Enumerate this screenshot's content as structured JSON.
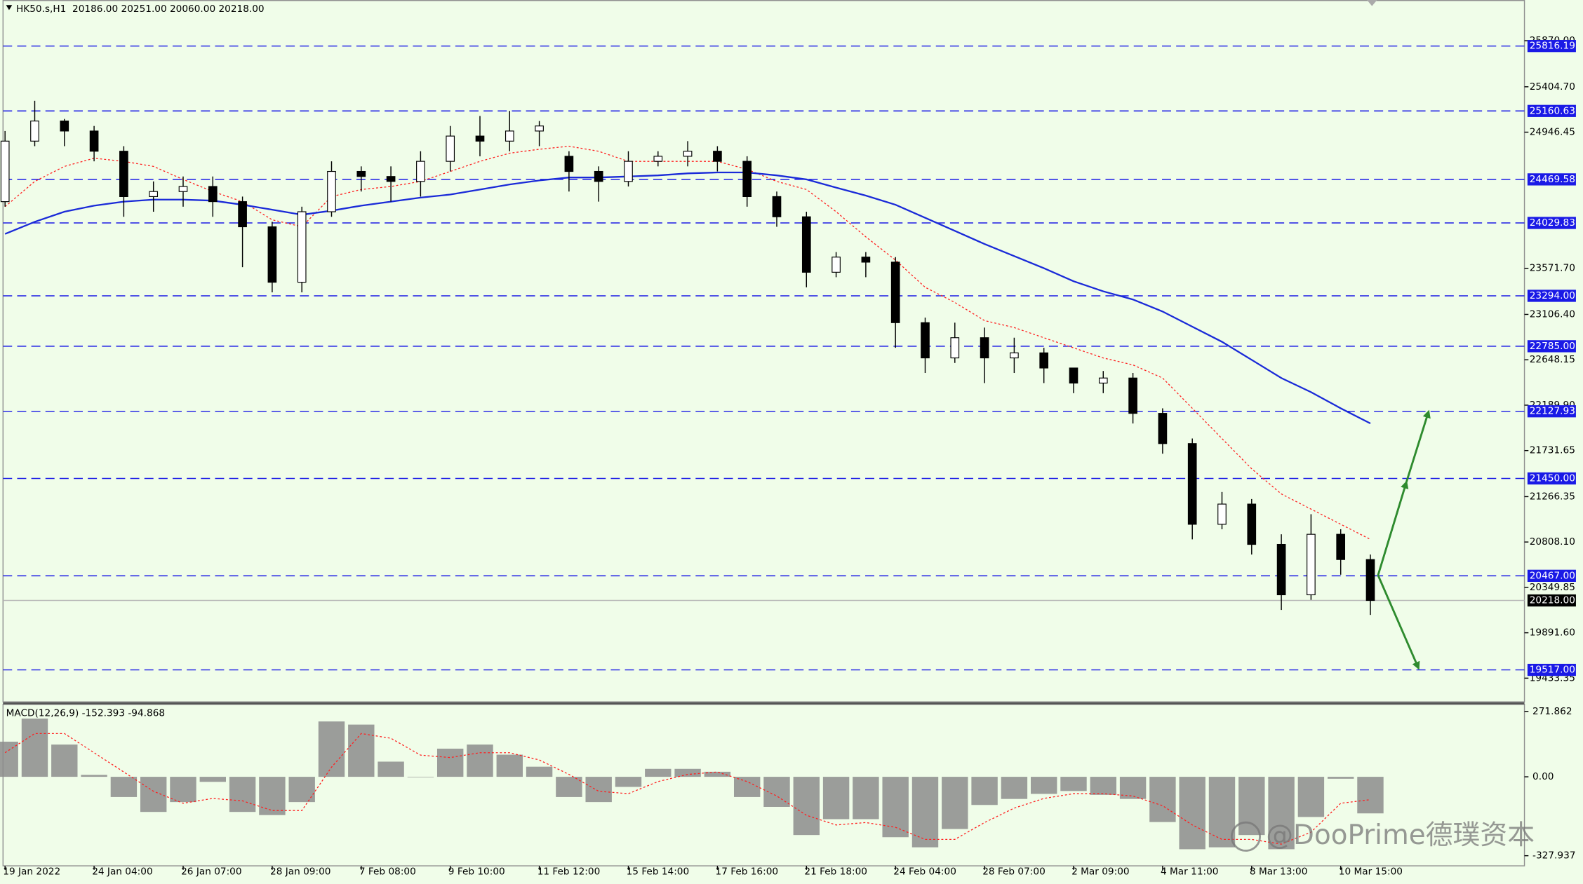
{
  "chart_data": [
    {
      "type": "candlestick",
      "title": "HK50.s,H1  20186.00 20251.00 20060.00 20218.00",
      "categories": [
        "19 Jan 2022",
        null,
        null,
        "24 Jan 04:00",
        null,
        null,
        "26 Jan 07:00",
        null,
        null,
        "28 Jan 09:00",
        null,
        null,
        "7 Feb 08:00",
        null,
        null,
        "9 Feb 10:00",
        null,
        null,
        "11 Feb 12:00",
        null,
        null,
        "15 Feb 14:00",
        null,
        null,
        "17 Feb 16:00",
        null,
        null,
        "21 Feb 18:00",
        null,
        null,
        "24 Feb 04:00",
        null,
        null,
        "28 Feb 07:00",
        null,
        null,
        "2 Mar 09:00",
        null,
        null,
        "4 Mar 11:00",
        null,
        null,
        "8 Mar 13:00",
        null,
        null,
        "10 Mar 15:00",
        null
      ],
      "open": [
        24245,
        24856,
        25059,
        24958,
        24754,
        24296,
        24347,
        24398,
        24245,
        23991,
        23431,
        24143,
        24550,
        24499,
        24449,
        24652,
        24907,
        24856,
        24958,
        24703,
        24550,
        24449,
        24652,
        24703,
        24754,
        24652,
        24296,
        24092,
        23532,
        23685,
        23634,
        23023,
        22667,
        22871,
        22667,
        22718,
        22565,
        22413,
        22464,
        22107,
        21802,
        20987,
        21191,
        20784,
        20275,
        20886,
        20631
      ],
      "high": [
        24958,
        25263,
        25080,
        25009,
        24805,
        24449,
        24499,
        24499,
        24296,
        24041,
        24194,
        24652,
        24601,
        24601,
        24754,
        25009,
        25110,
        25161,
        25059,
        24754,
        24601,
        24754,
        24754,
        24856,
        24805,
        24703,
        24347,
        24143,
        23736,
        23736,
        23685,
        23074,
        23023,
        22973,
        22871,
        22769,
        22565,
        22535,
        22515,
        22158,
        21853,
        21313,
        21242,
        20886,
        21089,
        20937,
        20682
      ],
      "low": [
        24194,
        24805,
        24805,
        24652,
        24092,
        24143,
        24194,
        24092,
        23583,
        23329,
        23329,
        24092,
        24347,
        24245,
        24296,
        24550,
        24703,
        24754,
        24805,
        24347,
        24245,
        24398,
        24601,
        24601,
        24550,
        24194,
        23991,
        23380,
        23482,
        23482,
        22769,
        22515,
        22616,
        22413,
        22515,
        22413,
        22311,
        22311,
        22005,
        21700,
        20835,
        20937,
        20682,
        20122,
        20224,
        20478,
        20072
      ],
      "close": [
        24856,
        25059,
        24958,
        24754,
        24296,
        24347,
        24398,
        24245,
        23991,
        23431,
        24143,
        24550,
        24499,
        24449,
        24652,
        24907,
        24856,
        24958,
        25009,
        24550,
        24449,
        24652,
        24703,
        24754,
        24652,
        24296,
        24092,
        23532,
        23685,
        23634,
        23023,
        22667,
        22871,
        22667,
        22718,
        22565,
        22413,
        22464,
        22107,
        21802,
        20987,
        21191,
        20784,
        20275,
        20886,
        20631,
        20218
      ],
      "up_color": "#ffffff",
      "down_color": "#000000",
      "lines": [
        {
          "color": "#ff2020",
          "style": "dotted",
          "values": [
            24194,
            24449,
            24601,
            24683,
            24652,
            24601,
            24469,
            24347,
            24245,
            24062,
            23991,
            24296,
            24367,
            24398,
            24449,
            24550,
            24652,
            24734,
            24774,
            24805,
            24754,
            24652,
            24652,
            24652,
            24652,
            24571,
            24449,
            24367,
            24143,
            23889,
            23655,
            23380,
            23227,
            23044,
            22973,
            22871,
            22769,
            22667,
            22596,
            22464,
            22158,
            21853,
            21548,
            21293,
            21140,
            20987,
            20835
          ]
        },
        {
          "color": "#1a2ad8",
          "style": "solid",
          "values": [
            23919,
            24041,
            24143,
            24204,
            24245,
            24265,
            24265,
            24255,
            24214,
            24164,
            24113,
            24153,
            24204,
            24245,
            24286,
            24316,
            24367,
            24418,
            24459,
            24489,
            24489,
            24499,
            24510,
            24530,
            24540,
            24540,
            24510,
            24469,
            24387,
            24306,
            24214,
            24082,
            23950,
            23817,
            23695,
            23573,
            23441,
            23339,
            23257,
            23135,
            22983,
            22830,
            22647,
            22464,
            22321,
            22158,
            22005
          ]
        }
      ],
      "levels": [
        {
          "value": 25816.19,
          "label": "25816.19"
        },
        {
          "value": 25160.63,
          "label": "25160.63"
        },
        {
          "value": 24469.58,
          "label": "24469.58"
        },
        {
          "value": 24029.83,
          "label": "24029.83"
        },
        {
          "value": 23294,
          "label": "23294.00"
        },
        {
          "value": 22785,
          "label": "22785.00"
        },
        {
          "value": 22127.93,
          "label": "22127.93"
        },
        {
          "value": 21450,
          "label": "21450.00"
        },
        {
          "value": 20467,
          "label": "20467.00"
        },
        {
          "value": 19517,
          "label": "19517.00"
        }
      ],
      "level_color": "#1a1ae6",
      "current_price": {
        "value": 20218,
        "label": "20218.00"
      },
      "ylim": [
        19189,
        26281
      ],
      "yticks": [
        {
          "value": 25870,
          "label": "25870.00"
        },
        {
          "value": 25404.7,
          "label": "25404.70"
        },
        {
          "value": 24946.45,
          "label": "24946.45"
        },
        {
          "value": 23571.7,
          "label": "23571.70"
        },
        {
          "value": 23106.4,
          "label": "23106.40"
        },
        {
          "value": 22648.15,
          "label": "22648.15"
        },
        {
          "value": 22189.9,
          "label": "22189.90"
        },
        {
          "value": 21731.65,
          "label": "21731.65"
        },
        {
          "value": 21266.35,
          "label": "21266.35"
        },
        {
          "value": 20808.1,
          "label": "20808.10"
        },
        {
          "value": 20349.85,
          "label": "20349.85"
        },
        {
          "value": 19891.6,
          "label": "19891.60"
        },
        {
          "value": 19433.35,
          "label": "19433.35"
        }
      ]
    },
    {
      "type": "macd",
      "title": "MACD(12,26,9) -152.393 -94.868",
      "histogram": {
        "color": "#8c8c8c",
        "values": [
          146,
          242,
          134,
          8,
          -84,
          -146,
          -105,
          -21,
          -146,
          -159,
          -105,
          230,
          217,
          63,
          0,
          117,
          134,
          92,
          42,
          -84,
          -105,
          -42,
          33,
          33,
          21,
          -84,
          -125,
          -242,
          -176,
          -176,
          -251,
          -293,
          -217,
          -117,
          -92,
          -71,
          -59,
          -75,
          -92,
          -188,
          -301,
          -293,
          -242,
          -301,
          -167,
          -8,
          -152
        ]
      },
      "signal": {
        "color": "#ff2020",
        "values": [
          100,
          180,
          180,
          100,
          20,
          -60,
          -110,
          -90,
          -100,
          -140,
          -140,
          40,
          180,
          160,
          90,
          80,
          100,
          100,
          70,
          10,
          -60,
          -70,
          -20,
          10,
          20,
          -20,
          -80,
          -160,
          -200,
          -190,
          -210,
          -260,
          -260,
          -190,
          -130,
          -90,
          -70,
          -70,
          -80,
          -120,
          -200,
          -260,
          -260,
          -280,
          -230,
          -110,
          -95
        ]
      },
      "ylim": [
        -370,
        301
      ],
      "yticks": [
        271.862,
        {
          "value": 0,
          "label": "0.00"
        },
        -327.937
      ]
    }
  ],
  "watermark": "@DooPrime德璞资本"
}
